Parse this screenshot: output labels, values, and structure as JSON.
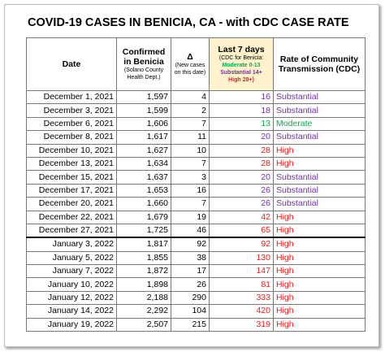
{
  "title": "COVID-19 CASES IN BENICIA, CA - with CDC CASE RATE",
  "header": {
    "date": "Date",
    "confirmed": [
      "Confirmed in Benicia",
      "(Solano County Health Dept.)"
    ],
    "delta": [
      "Δ",
      "(New cases on this date)"
    ],
    "last7": [
      "Last 7 days",
      "(CDC for Benicia:",
      "Moderate 0-13",
      "Substantial 14+",
      "High 28+)"
    ],
    "rate": "Rate of Community Transmission (CDC)"
  },
  "legend_colors": [
    "#00b050",
    "#7030a0",
    "#e02020"
  ],
  "table": {
    "rows": [
      [
        "December 1, 2021",
        "1,597",
        "4",
        "16",
        "Substantial"
      ],
      [
        "December 3, 2021",
        "1,599",
        "2",
        "18",
        "Substantial"
      ],
      [
        "December 6, 2021",
        "1,606",
        "7",
        "13",
        "Moderate"
      ],
      [
        "December 8, 2021",
        "1,617",
        "11",
        "20",
        "Substantial"
      ],
      [
        "December 10, 2021",
        "1,627",
        "10",
        "28",
        "High"
      ],
      [
        "December 13, 2021",
        "1,634",
        "7",
        "28",
        "High"
      ],
      [
        "December 15, 2021",
        "1,637",
        "3",
        "20",
        "Substantial"
      ],
      [
        "December 17, 2021",
        "1,653",
        "16",
        "26",
        "Substantial"
      ],
      [
        "December 20, 2021",
        "1,660",
        "7",
        "26",
        "Substantial"
      ],
      [
        "December 22, 2021",
        "1,679",
        "19",
        "42",
        "High"
      ],
      [
        "December 27, 2021",
        "1,725",
        "46",
        "65",
        "High"
      ],
      [
        "January 3, 2022",
        "1,817",
        "92",
        "92",
        "High"
      ],
      [
        "January 5, 2022",
        "1,855",
        "38",
        "130",
        "High"
      ],
      [
        "January 7, 2022",
        "1,872",
        "17",
        "147",
        "High"
      ],
      [
        "January 10, 2022",
        "1,898",
        "26",
        "81",
        "High"
      ],
      [
        "January 12, 2022",
        "2,188",
        "290",
        "333",
        "High"
      ],
      [
        "January 14, 2022",
        "2,292",
        "104",
        "420",
        "High"
      ],
      [
        "January 19, 2022",
        "2,507",
        "215",
        "319",
        "High"
      ]
    ],
    "row_colors": [
      "#7030a0",
      "#7030a0",
      "#00b050",
      "#7030a0",
      "#e02020",
      "#e02020",
      "#7030a0",
      "#7030a0",
      "#7030a0",
      "#e02020",
      "#e02020",
      "#e02020",
      "#e02020",
      "#e02020",
      "#e02020",
      "#e02020",
      "#e02020",
      "#e02020"
    ]
  }
}
